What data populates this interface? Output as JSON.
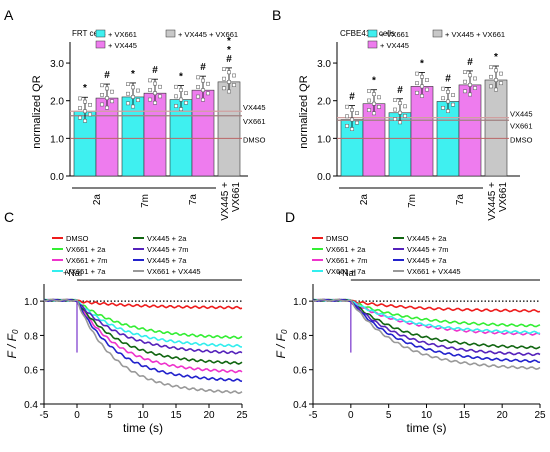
{
  "panels": {
    "A": {
      "letter": "A",
      "subtitle": "FRT cells"
    },
    "B": {
      "letter": "B",
      "subtitle": "CFBE41o- cells"
    },
    "C": {
      "letter": "C"
    },
    "D": {
      "letter": "D"
    }
  },
  "legend_bar": [
    "+ VX661",
    "+ VX445",
    "+ VX445 + VX661"
  ],
  "colors": {
    "cyan": "#3ff0f0",
    "magenta": "#ee7cee",
    "gray": "#c8c8c8",
    "DMSO": "#ee1c1c",
    "2a": "#33ee33",
    "7m": "#ee33cc",
    "7a": "#33eeee",
    "v445_2a": "#116611",
    "v445_7m": "#5522bb",
    "v445_7a": "#2222cc",
    "v661_v445": "#999999"
  },
  "chart_data": [
    {
      "panel": "A",
      "type": "bar",
      "title": "FRT cells",
      "ylabel": "normalized QR",
      "ylim": [
        0,
        3.4
      ],
      "yticks": [
        "0.0",
        "1.0",
        "2.0",
        "3.0"
      ],
      "groups": [
        "2a",
        "7m",
        "7a"
      ],
      "combo_label": [
        "VX445 +",
        "VX661"
      ],
      "series": [
        {
          "name": "+ VX661",
          "values": [
            1.72,
            2.1,
            2.03
          ]
        },
        {
          "name": "+ VX445",
          "values": [
            2.07,
            2.2,
            2.28
          ]
        }
      ],
      "combo_value": 2.5,
      "ref_lines": [
        {
          "label": "VX445",
          "value": 1.72
        },
        {
          "label": "VX661",
          "value": 1.6
        },
        {
          "label": "DMSO",
          "value": 1.0
        }
      ],
      "significance": [
        "*",
        "#",
        "*",
        "#",
        "*",
        "#",
        "#",
        "*",
        "*"
      ]
    },
    {
      "panel": "B",
      "type": "bar",
      "title": "CFBE41o- cells",
      "ylabel": "normalized QR",
      "ylim": [
        0,
        3.4
      ],
      "yticks": [
        "0.0",
        "1.0",
        "2.0",
        "3.0"
      ],
      "groups": [
        "2a",
        "7m",
        "7a"
      ],
      "combo_label": [
        "VX445 +",
        "VX661"
      ],
      "series": [
        {
          "name": "+ VX661",
          "values": [
            1.5,
            1.68,
            1.98
          ]
        },
        {
          "name": "+ VX445",
          "values": [
            1.92,
            2.38,
            2.42
          ]
        }
      ],
      "combo_value": 2.55,
      "ref_lines": [
        {
          "label": "VX445",
          "value": 1.55
        },
        {
          "label": "VX661",
          "value": 1.48
        },
        {
          "label": "DMSO",
          "value": 1.0
        }
      ],
      "significance": [
        "#",
        "*",
        "#",
        "*",
        "#",
        "#",
        "*"
      ]
    },
    {
      "panel": "C",
      "type": "line",
      "xlabel": "time  (s)",
      "ylabel": "F / F0",
      "xlim": [
        -5,
        25
      ],
      "ylim": [
        0.4,
        1.1
      ],
      "xticks": [
        "-5",
        "0",
        "5",
        "10",
        "15",
        "20",
        "25"
      ],
      "yticks": [
        "0.4",
        "0.6",
        "0.8",
        "1.0"
      ],
      "annotation": "+NaI",
      "series": [
        {
          "name": "DMSO",
          "final": 0.96
        },
        {
          "name": "VX661 + 2a",
          "final": 0.78
        },
        {
          "name": "VX661 + 7m",
          "final": 0.58
        },
        {
          "name": "VX661 + 7a",
          "final": 0.73
        },
        {
          "name": "VX445 + 2a",
          "final": 0.63
        },
        {
          "name": "VX445 + 7m",
          "final": 0.69
        },
        {
          "name": "VX445 + 7a",
          "final": 0.53
        },
        {
          "name": "VX661 + VX445",
          "final": 0.46
        }
      ]
    },
    {
      "panel": "D",
      "type": "line",
      "xlabel": "time  (s)",
      "ylabel": "F / F0",
      "xlim": [
        -5,
        25
      ],
      "ylim": [
        0.4,
        1.1
      ],
      "xticks": [
        "-5",
        "0",
        "5",
        "10",
        "15",
        "20",
        "25"
      ],
      "yticks": [
        "0.4",
        "0.6",
        "0.8",
        "1.0"
      ],
      "annotation": "+NaI",
      "series": [
        {
          "name": "DMSO",
          "final": 0.94
        },
        {
          "name": "VX661 + 2a",
          "final": 0.85
        },
        {
          "name": "VX661 + 7m",
          "final": 0.8
        },
        {
          "name": "VX661 + 7a",
          "final": 0.81
        },
        {
          "name": "VX445 + 2a",
          "final": 0.72
        },
        {
          "name": "VX445 + 7m",
          "final": 0.68
        },
        {
          "name": "VX445 + 7a",
          "final": 0.64
        },
        {
          "name": "VX661 + VX445",
          "final": 0.6
        }
      ]
    }
  ]
}
